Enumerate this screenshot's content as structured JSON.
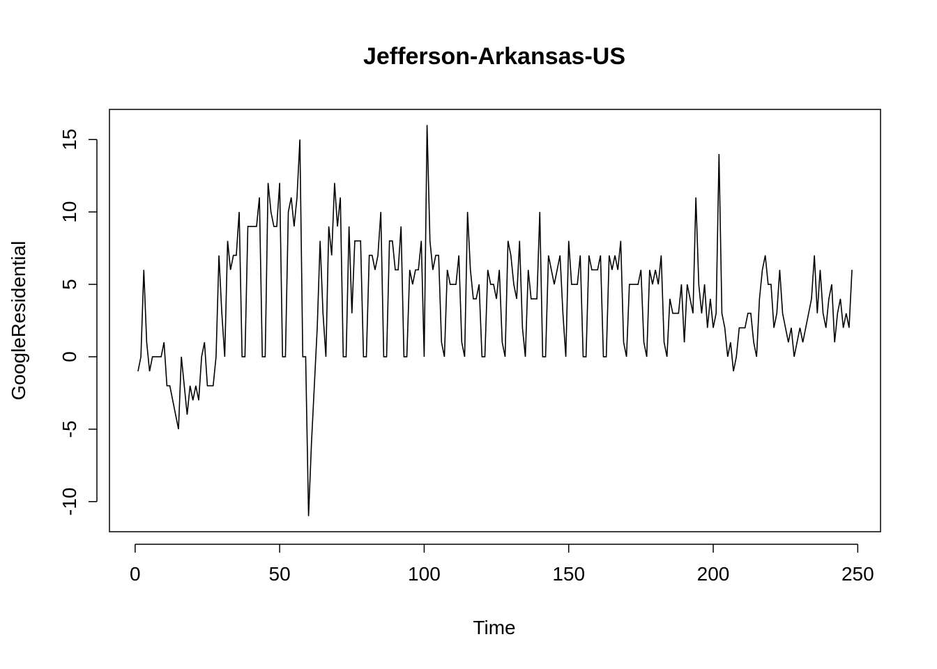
{
  "chart_data": {
    "type": "line",
    "title": "Jefferson-Arkansas-US",
    "xlabel": "Time",
    "ylabel": "GoogleResidential",
    "xlim": [
      1,
      248
    ],
    "ylim": [
      -11,
      16
    ],
    "x_ticks": [
      0,
      50,
      100,
      150,
      200,
      250
    ],
    "y_ticks": [
      -10,
      -5,
      0,
      5,
      10,
      15
    ],
    "grid": false,
    "legend": "none",
    "line_color": "#000000",
    "x_start": 1,
    "series": [
      {
        "values": [
          -1,
          0,
          6,
          1,
          -1,
          0,
          0,
          0,
          0,
          1,
          -2,
          -2,
          -3,
          -4,
          -5,
          0,
          -2,
          -4,
          -2,
          -3,
          -2,
          -3,
          0,
          1,
          -2,
          -2,
          -2,
          0,
          7,
          3,
          0,
          8,
          6,
          7,
          7,
          10,
          0,
          0,
          9,
          9,
          9,
          9,
          11,
          0,
          0,
          12,
          10,
          9,
          9,
          12,
          0,
          0,
          10,
          11,
          9,
          11,
          15,
          0,
          0,
          -11,
          -6,
          -2,
          2,
          8,
          3,
          0,
          9,
          7,
          12,
          9,
          11,
          0,
          0,
          9,
          3,
          8,
          8,
          8,
          0,
          0,
          7,
          7,
          6,
          7,
          10,
          0,
          0,
          8,
          8,
          6,
          6,
          9,
          0,
          0,
          6,
          5,
          6,
          6,
          8,
          0,
          16,
          8,
          6,
          7,
          7,
          1,
          0,
          6,
          5,
          5,
          5,
          7,
          1,
          0,
          10,
          6,
          4,
          4,
          5,
          0,
          0,
          6,
          5,
          5,
          4,
          6,
          1,
          0,
          8,
          7,
          5,
          4,
          8,
          2,
          0,
          6,
          4,
          4,
          4,
          10,
          0,
          0,
          7,
          6,
          5,
          6,
          7,
          3,
          0,
          8,
          5,
          5,
          5,
          7,
          0,
          0,
          7,
          6,
          6,
          6,
          7,
          0,
          0,
          7,
          6,
          7,
          6,
          8,
          1,
          0,
          5,
          5,
          5,
          5,
          6,
          1,
          0,
          6,
          5,
          6,
          5,
          7,
          1,
          0,
          4,
          3,
          3,
          3,
          5,
          1,
          5,
          4,
          3,
          11,
          5,
          3,
          5,
          2,
          4,
          2,
          3,
          14,
          3,
          2,
          0,
          1,
          -1,
          0,
          2,
          2,
          2,
          3,
          3,
          1,
          0,
          4,
          6,
          7,
          5,
          5,
          2,
          3,
          6,
          3,
          2,
          1,
          2,
          0,
          1,
          2,
          1,
          2,
          3,
          4,
          7,
          3,
          6,
          3,
          2,
          4,
          5,
          1,
          3,
          4,
          2,
          3,
          2,
          6
        ]
      }
    ]
  }
}
